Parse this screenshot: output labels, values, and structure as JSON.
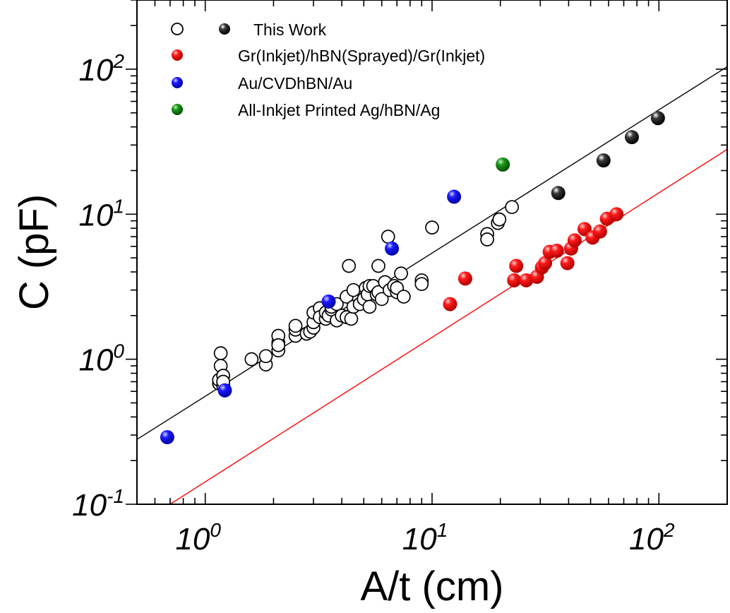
{
  "chart_data": {
    "type": "scatter",
    "title": "",
    "xlabel": "A/t (cm)",
    "ylabel": "C (pF)",
    "xscale": "log",
    "yscale": "log",
    "xlim": [
      0.5,
      200
    ],
    "ylim": [
      0.1,
      300
    ],
    "xticks": [
      {
        "base": "10",
        "exp": "0",
        "value": 1
      },
      {
        "base": "10",
        "exp": "1",
        "value": 10
      },
      {
        "base": "10",
        "exp": "2",
        "value": 100
      }
    ],
    "yticks": [
      {
        "base": "10",
        "exp": "-1",
        "value": 0.1
      },
      {
        "base": "10",
        "exp": "0",
        "value": 1
      },
      {
        "base": "10",
        "exp": "1",
        "value": 10
      },
      {
        "base": "10",
        "exp": "2",
        "value": 100
      }
    ],
    "grid": false,
    "legend_position": "top-left",
    "legend": {
      "this_work": "This Work",
      "gr_inkjet": "Gr(Inkjet)/hBN(Sprayed)/Gr(Inkjet)",
      "au_cvd": "Au/CVDhBN/Au",
      "ag_inkjet": "All-Inkjet Printed Ag/hBN/Ag"
    },
    "series": [
      {
        "name": "This Work",
        "marker": "open-circle",
        "color": "#000000",
        "points": [
          [
            1.15,
            0.68
          ],
          [
            1.15,
            0.72
          ],
          [
            1.17,
            0.9
          ],
          [
            1.17,
            1.1
          ],
          [
            1.2,
            0.77
          ],
          [
            1.2,
            0.66
          ],
          [
            1.2,
            0.7
          ],
          [
            1.6,
            1.0
          ],
          [
            1.85,
            0.92
          ],
          [
            1.85,
            1.05
          ],
          [
            2.1,
            1.15
          ],
          [
            2.1,
            1.3
          ],
          [
            2.1,
            1.45
          ],
          [
            2.1,
            1.25
          ],
          [
            2.5,
            1.45
          ],
          [
            2.5,
            1.6
          ],
          [
            2.5,
            1.7
          ],
          [
            2.8,
            1.5
          ],
          [
            2.9,
            1.55
          ],
          [
            3.0,
            1.65
          ],
          [
            3.0,
            1.8
          ],
          [
            3.0,
            2.1
          ],
          [
            3.2,
            2.25
          ],
          [
            3.2,
            1.95
          ],
          [
            3.4,
            1.9
          ],
          [
            3.4,
            2.1
          ],
          [
            3.5,
            2.0
          ],
          [
            3.6,
            2.2
          ],
          [
            3.6,
            2.3
          ],
          [
            3.8,
            1.85
          ],
          [
            3.8,
            2.4
          ],
          [
            4.0,
            2.0
          ],
          [
            4.2,
            1.95
          ],
          [
            4.2,
            2.7
          ],
          [
            4.3,
            4.4
          ],
          [
            4.4,
            1.9
          ],
          [
            4.5,
            2.3
          ],
          [
            4.5,
            3.0
          ],
          [
            4.8,
            2.4
          ],
          [
            5.0,
            2.6
          ],
          [
            5.1,
            3.1
          ],
          [
            5.2,
            2.8
          ],
          [
            5.3,
            2.3
          ],
          [
            5.3,
            3.2
          ],
          [
            5.5,
            3.2
          ],
          [
            5.7,
            2.8
          ],
          [
            5.8,
            4.4
          ],
          [
            5.8,
            2.9
          ],
          [
            6.0,
            2.6
          ],
          [
            6.2,
            3.4
          ],
          [
            6.4,
            7.0
          ],
          [
            6.5,
            3.0
          ],
          [
            6.8,
            3.2
          ],
          [
            7.0,
            2.9
          ],
          [
            7.0,
            3.1
          ],
          [
            7.3,
            3.9
          ],
          [
            7.5,
            2.7
          ],
          [
            9.0,
            3.5
          ],
          [
            9.0,
            3.3
          ],
          [
            10.0,
            8.1
          ],
          [
            17.5,
            7.3
          ],
          [
            17.5,
            6.7
          ],
          [
            19.5,
            8.7
          ],
          [
            19.8,
            9.2
          ],
          [
            22.5,
            11.2
          ]
        ]
      },
      {
        "name": "This Work",
        "marker": "filled-sphere",
        "color": "#000000",
        "points": [
          [
            36,
            14
          ],
          [
            57,
            23.5
          ],
          [
            76,
            34
          ],
          [
            99,
            46
          ]
        ]
      },
      {
        "name": "Gr(Inkjet)/hBN(Sprayed)/Gr(Inkjet)",
        "marker": "filled-sphere",
        "color": "#ff0000",
        "points": [
          [
            12,
            2.4
          ],
          [
            14,
            3.6
          ],
          [
            23,
            3.5
          ],
          [
            23.5,
            4.4
          ],
          [
            26,
            3.5
          ],
          [
            29,
            3.7
          ],
          [
            30.5,
            4.3
          ],
          [
            31.5,
            4.6
          ],
          [
            33,
            5.5
          ],
          [
            35.5,
            5.6
          ],
          [
            39.5,
            4.6
          ],
          [
            41,
            5.8
          ],
          [
            42.5,
            6.6
          ],
          [
            47,
            7.9
          ],
          [
            51,
            6.9
          ],
          [
            55,
            7.6
          ],
          [
            59,
            9.3
          ],
          [
            65,
            10
          ]
        ]
      },
      {
        "name": "Au/CVDhBN/Au",
        "marker": "filled-sphere",
        "color": "#0000ff",
        "points": [
          [
            0.68,
            0.29
          ],
          [
            1.22,
            0.61
          ],
          [
            3.5,
            2.5
          ],
          [
            6.65,
            5.8
          ],
          [
            12.5,
            13.2
          ]
        ]
      },
      {
        "name": "All-Inkjet Printed Ag/hBN/Ag",
        "marker": "filled-sphere",
        "color": "#008000",
        "points": [
          [
            20.5,
            22
          ]
        ]
      }
    ],
    "fit_lines": [
      {
        "color": "#000000",
        "from": [
          0.5,
          0.28
        ],
        "to": [
          200,
          104
        ]
      },
      {
        "color": "#ff0000",
        "from": [
          0.7,
          0.1
        ],
        "to": [
          200,
          28
        ]
      }
    ]
  }
}
